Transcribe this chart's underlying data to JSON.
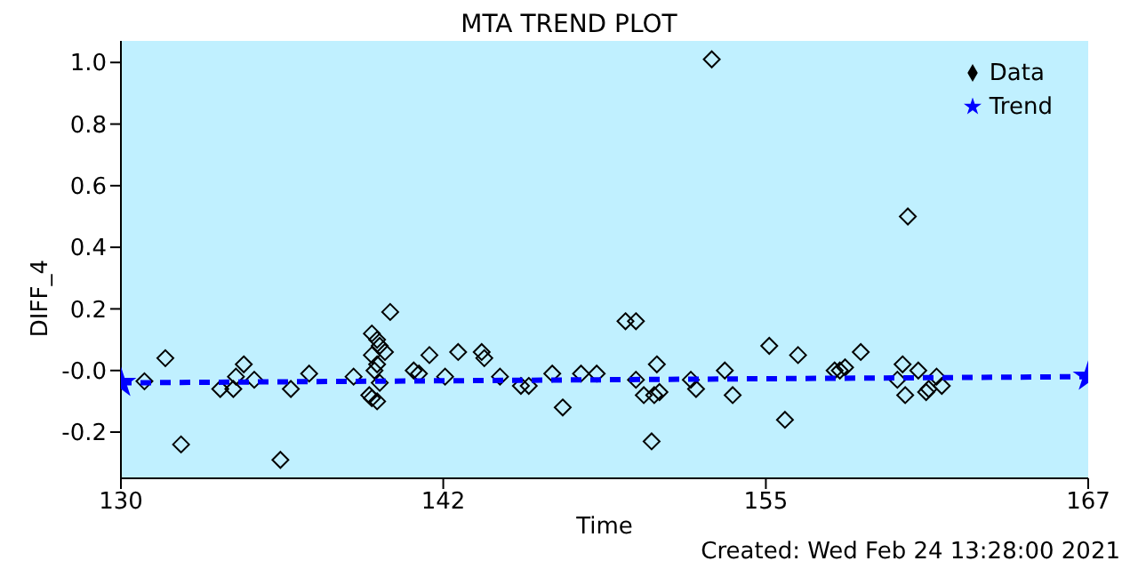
{
  "chart_data": {
    "type": "scatter",
    "title": "MTA TREND PLOT",
    "xlabel": "Time",
    "ylabel": "DIFF_4",
    "annotations": [
      "Created: Wed Feb 24 13:28:00 2021"
    ],
    "xlim": [
      130,
      167
    ],
    "xticks": [
      130,
      {
        "value": 142.33,
        "label": "142"
      },
      {
        "value": 154.67,
        "label": "155"
      },
      167
    ],
    "ylim": [
      -0.35,
      1.07
    ],
    "yticks": [
      {
        "value": -0.2,
        "label": "-0.2"
      },
      {
        "value": 0,
        "label": "-0.0"
      },
      {
        "value": 0.2,
        "label": "0.2"
      },
      {
        "value": 0.4,
        "label": "0.4"
      },
      {
        "value": 0.6,
        "label": "0.6"
      },
      {
        "value": 0.8,
        "label": "0.8"
      },
      {
        "value": 1,
        "label": "1.0"
      }
    ],
    "legend": "top right",
    "grid": false,
    "series": [
      {
        "name": "Data",
        "marker": "diamond",
        "color": "#000000",
        "x": [
          130.9,
          131.7,
          132.3,
          133.8,
          134.3,
          134.4,
          134.7,
          135.1,
          136.1,
          136.5,
          137.2,
          138.9,
          139.6,
          139.6,
          139.8,
          139.9,
          140.1,
          139.8,
          139.7,
          139.5,
          139.6,
          139.8,
          139.9,
          140.3,
          141.2,
          141.4,
          141.8,
          142.4,
          142.9,
          143.8,
          143.9,
          144.5,
          145.3,
          145.6,
          146.5,
          146.9,
          147.6,
          148.2,
          149.3,
          149.7,
          149.7,
          150.0,
          150.3,
          150.5,
          150.4,
          150.6,
          151.8,
          152.0,
          152.6,
          153.1,
          153.4,
          154.8,
          155.4,
          155.9,
          157.3,
          157.5,
          157.7,
          158.3,
          160.1,
          159.7,
          159.9,
          160.0,
          160.5,
          160.8,
          160.9,
          161.2,
          161.4
        ],
        "values": [
          -0.035,
          0.04,
          -0.24,
          -0.06,
          -0.06,
          -0.02,
          0.02,
          -0.03,
          -0.29,
          -0.06,
          -0.01,
          -0.02,
          0.12,
          0.05,
          0.1,
          0.08,
          0.06,
          0.02,
          0.0,
          -0.08,
          -0.09,
          -0.1,
          -0.04,
          0.19,
          0.0,
          -0.01,
          0.05,
          -0.02,
          0.06,
          0.06,
          0.04,
          -0.02,
          -0.05,
          -0.05,
          -0.01,
          -0.12,
          -0.01,
          -0.01,
          0.16,
          0.16,
          -0.03,
          -0.08,
          -0.23,
          0.02,
          -0.08,
          -0.07,
          -0.03,
          -0.06,
          1.01,
          0.0,
          -0.08,
          0.08,
          -0.16,
          0.05,
          0.0,
          0.0,
          0.01,
          0.06,
          0.5,
          -0.03,
          0.02,
          -0.08,
          0.0,
          -0.07,
          -0.06,
          -0.02,
          -0.05
        ]
      },
      {
        "name": "Trend",
        "type": "line",
        "marker": "star",
        "line_style": "dashed",
        "color": "#0000ff",
        "x": [
          130,
          167
        ],
        "values": [
          -0.04,
          -0.02
        ]
      }
    ]
  }
}
